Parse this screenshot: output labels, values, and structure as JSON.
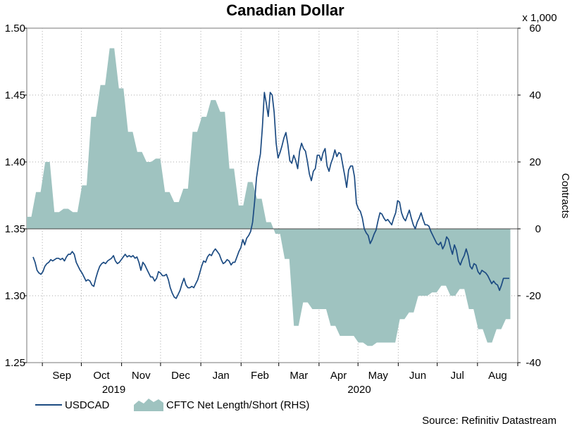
{
  "chart_data": {
    "type": "line",
    "title": "Canadian Dollar",
    "source": "Source: Refinitiv Datastream",
    "left_axis": {
      "min": 1.25,
      "max": 1.5,
      "ticks": [
        "1.25",
        "1.30",
        "1.35",
        "1.40",
        "1.45",
        "1.50"
      ]
    },
    "right_axis": {
      "min": -40,
      "max": 60,
      "ticks": [
        "-40",
        "-20",
        "0",
        "20",
        "40",
        "60"
      ],
      "unit_label": "x 1,000",
      "title": "Contracts"
    },
    "x_axis": {
      "months": [
        "Sep",
        "Oct",
        "Nov",
        "Dec",
        "Jan",
        "Feb",
        "Mar",
        "Apr",
        "May",
        "Jun",
        "Jul",
        "Aug"
      ],
      "years": [
        "2019",
        "2020"
      ],
      "start": "2019-08-20",
      "end": "2020-09-01"
    },
    "legend": [
      "USDCAD",
      "CFTC Net Length/Short (RHS)"
    ],
    "colors": {
      "line": "#1c4b82",
      "area": "#9fc3c0",
      "grid": "#aaaaaa",
      "baseline": "#444444"
    },
    "cftc_weekly": [
      3.6,
      3.6,
      11,
      11,
      20,
      20,
      5,
      5,
      6,
      6,
      5,
      5,
      13,
      13,
      33.5,
      33.5,
      43,
      43,
      54,
      54,
      42,
      42,
      29,
      29,
      23,
      23,
      20,
      20,
      21,
      21,
      11,
      11,
      8,
      8,
      12,
      12,
      29,
      29,
      33.5,
      33.5,
      38.5,
      38.5,
      35,
      35,
      18,
      18,
      7,
      7,
      14,
      14,
      9,
      9,
      2,
      2,
      -1.5,
      -1.5,
      -9,
      -9,
      -29,
      -29,
      -22,
      -22,
      -24,
      -24,
      -24,
      -24,
      -29,
      -29,
      -32,
      -32,
      -32,
      -32,
      -34,
      -34,
      -35,
      -35,
      -34,
      -34,
      -34,
      -34,
      -34,
      -27,
      -27,
      -25,
      -25,
      -20,
      -20,
      -20,
      -19,
      -19,
      -17,
      -17,
      -20,
      -20,
      -18,
      -18,
      -24,
      -24,
      -30,
      -30,
      -34,
      -34,
      -30,
      -30,
      -27,
      -27
    ],
    "usdcad_daily": [
      1.329,
      1.325,
      1.319,
      1.317,
      1.316,
      1.318,
      1.322,
      1.324,
      1.325,
      1.327,
      1.326,
      1.327,
      1.328,
      1.328,
      1.327,
      1.328,
      1.326,
      1.329,
      1.331,
      1.331,
      1.333,
      1.331,
      1.325,
      1.322,
      1.319,
      1.317,
      1.314,
      1.311,
      1.312,
      1.311,
      1.308,
      1.307,
      1.313,
      1.318,
      1.322,
      1.324,
      1.325,
      1.324,
      1.326,
      1.327,
      1.328,
      1.33,
      1.326,
      1.324,
      1.325,
      1.327,
      1.329,
      1.331,
      1.329,
      1.33,
      1.329,
      1.33,
      1.328,
      1.329,
      1.325,
      1.319,
      1.325,
      1.323,
      1.32,
      1.317,
      1.314,
      1.314,
      1.311,
      1.313,
      1.318,
      1.317,
      1.315,
      1.315,
      1.316,
      1.312,
      1.306,
      1.302,
      1.299,
      1.298,
      1.301,
      1.304,
      1.309,
      1.313,
      1.308,
      1.306,
      1.306,
      1.307,
      1.306,
      1.309,
      1.312,
      1.317,
      1.322,
      1.326,
      1.325,
      1.329,
      1.331,
      1.33,
      1.333,
      1.335,
      1.333,
      1.331,
      1.327,
      1.324,
      1.325,
      1.327,
      1.326,
      1.323,
      1.325,
      1.325,
      1.329,
      1.333,
      1.336,
      1.342,
      1.338,
      1.343,
      1.345,
      1.348,
      1.355,
      1.37,
      1.388,
      1.398,
      1.406,
      1.426,
      1.452,
      1.444,
      1.434,
      1.452,
      1.45,
      1.437,
      1.414,
      1.403,
      1.407,
      1.412,
      1.418,
      1.422,
      1.413,
      1.401,
      1.399,
      1.405,
      1.401,
      1.395,
      1.408,
      1.414,
      1.41,
      1.408,
      1.4,
      1.391,
      1.386,
      1.393,
      1.395,
      1.405,
      1.405,
      1.401,
      1.407,
      1.41,
      1.397,
      1.393,
      1.399,
      1.403,
      1.409,
      1.404,
      1.407,
      1.406,
      1.398,
      1.39,
      1.381,
      1.394,
      1.397,
      1.397,
      1.389,
      1.369,
      1.365,
      1.363,
      1.358,
      1.35,
      1.347,
      1.345,
      1.339,
      1.342,
      1.346,
      1.349,
      1.356,
      1.362,
      1.361,
      1.358,
      1.356,
      1.357,
      1.355,
      1.353,
      1.358,
      1.362,
      1.371,
      1.37,
      1.362,
      1.358,
      1.356,
      1.36,
      1.364,
      1.358,
      1.353,
      1.35,
      1.355,
      1.358,
      1.362,
      1.357,
      1.353,
      1.353,
      1.352,
      1.348,
      1.345,
      1.342,
      1.339,
      1.338,
      1.34,
      1.335,
      1.338,
      1.344,
      1.342,
      1.336,
      1.331,
      1.338,
      1.334,
      1.326,
      1.323,
      1.327,
      1.33,
      1.335,
      1.33,
      1.322,
      1.32,
      1.324,
      1.323,
      1.318,
      1.316,
      1.319,
      1.318,
      1.317,
      1.315,
      1.312,
      1.309,
      1.311,
      1.309,
      1.308,
      1.304,
      1.308,
      1.313,
      1.313,
      1.313,
      1.313
    ]
  }
}
